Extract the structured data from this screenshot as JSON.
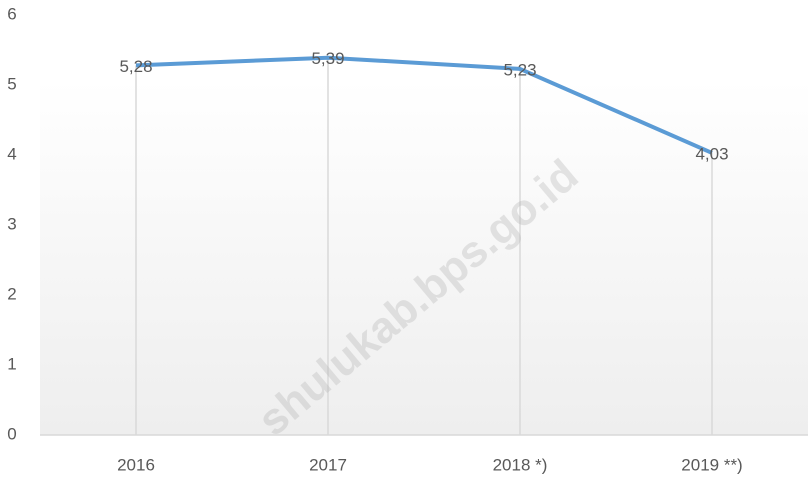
{
  "chart_data": {
    "type": "line",
    "categories": [
      "2016",
      "2017",
      "2018 *)",
      "2019 **)"
    ],
    "series": [
      {
        "name": null,
        "color": "#5b9bd5",
        "values": [
          5.28,
          5.39,
          5.23,
          4.03
        ],
        "value_labels": [
          "5,28",
          "5,39",
          "5,23",
          "4,03"
        ]
      }
    ],
    "ylim": [
      0,
      6
    ],
    "yticks": [
      0,
      1,
      2,
      3,
      4,
      5,
      6
    ],
    "drop_lines": true,
    "watermark": "shulukab.bps.go.id"
  }
}
